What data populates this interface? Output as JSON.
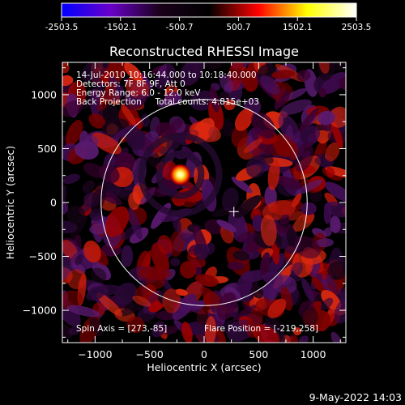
{
  "colorbar": {
    "ticks": [
      "-2503.5",
      "-1502.1",
      "-500.7",
      "500.7",
      "1502.1",
      "2503.5"
    ],
    "range": [
      -2503.5,
      2503.5
    ],
    "stops": [
      "#0000ff",
      "#6a00c8",
      "#1a001a",
      "#000000",
      "#ff0000",
      "#ffff00",
      "#ffffff"
    ]
  },
  "chart_data": {
    "type": "heatmap",
    "title": "Reconstructed RHESSI Image",
    "xlabel": "Heliocentric X (arcsec)",
    "ylabel": "Heliocentric Y (arcsec)",
    "xlim": [
      -1300,
      1300
    ],
    "ylim": [
      -1300,
      1300
    ],
    "xticks": [
      -1000,
      -500,
      0,
      500,
      1000
    ],
    "yticks": [
      -1000,
      -500,
      0,
      500,
      1000
    ],
    "xtick_labels": [
      "−1000",
      "−500",
      "0",
      "500",
      "1000"
    ],
    "ytick_labels": [
      "−1000",
      "−500",
      "0",
      "500",
      "1000"
    ],
    "solar_limb_radius": 945,
    "sun_center": [
      0,
      0
    ],
    "spin_axis_marker": [
      273,
      -85
    ],
    "flare_source": {
      "x": -219,
      "y": 258
    },
    "info_lines": [
      "14-Jul-2010 10:16:44.000 to 10:18:40.000",
      "Detectors: 7F 8F 9F, Att 0",
      "Energy Range: 6.0 - 12.0 keV",
      "Back Projection     Total counts: 4.815e+03"
    ],
    "spin_axis_text": "Spin Axis = [273,-85]",
    "flare_position_text": "Flare Position = [-219,258]"
  },
  "footer": {
    "timestamp": "9-May-2022 14:03"
  },
  "colors": {
    "background": "#000000",
    "foreground": "#ffffff"
  }
}
